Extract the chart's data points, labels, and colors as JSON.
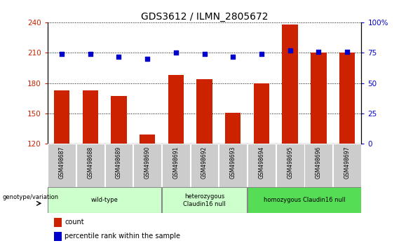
{
  "title": "GDS3612 / ILMN_2805672",
  "samples": [
    "GSM498687",
    "GSM498688",
    "GSM498689",
    "GSM498690",
    "GSM498691",
    "GSM498692",
    "GSM498693",
    "GSM498694",
    "GSM498695",
    "GSM498696",
    "GSM498697"
  ],
  "bar_values": [
    173,
    173,
    167,
    129,
    188,
    184,
    151,
    180,
    238,
    210,
    210
  ],
  "dot_values": [
    209,
    209,
    206,
    204,
    210,
    209,
    206,
    209,
    212,
    211,
    211
  ],
  "bar_color": "#cc2200",
  "dot_color": "#0000cc",
  "ylim_left": [
    120,
    240
  ],
  "ylim_right": [
    0,
    100
  ],
  "yticks_left": [
    120,
    150,
    180,
    210,
    240
  ],
  "yticks_right": [
    0,
    25,
    50,
    75,
    100
  ],
  "yticklabels_right": [
    "0",
    "25",
    "50",
    "75",
    "100%"
  ],
  "group_ranges": [
    [
      0,
      3,
      "wild-type",
      "#ccffcc"
    ],
    [
      4,
      6,
      "heterozygous\nClaudin16 null",
      "#ccffcc"
    ],
    [
      7,
      10,
      "homozygous Claudin16 null",
      "#55dd55"
    ]
  ],
  "genotype_label": "genotype/variation",
  "legend_count_color": "#cc2200",
  "legend_dot_color": "#0000cc",
  "background_color": "#ffffff",
  "plot_bg_color": "#ffffff",
  "sample_box_color": "#cccccc",
  "fig_width": 5.89,
  "fig_height": 3.54
}
